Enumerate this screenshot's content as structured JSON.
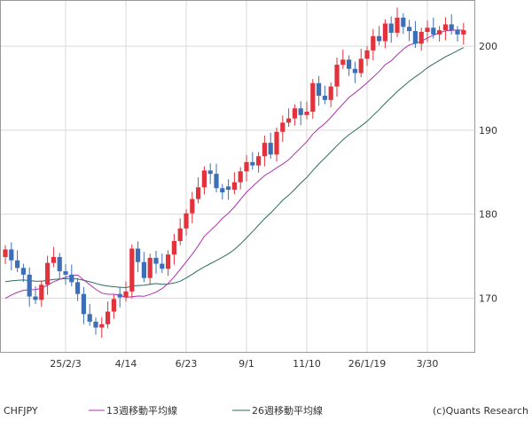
{
  "chart_data": {
    "type": "candlestick",
    "symbol": "CHFJPY",
    "credit": "(c)Quants Research",
    "ylim": [
      163.5,
      205.5
    ],
    "y_ticks": [
      170,
      180,
      190,
      200
    ],
    "x_ticks": [
      "25/2/3",
      "4/14",
      "6/23",
      "9/1",
      "11/10",
      "26/1/19",
      "3/30"
    ],
    "x_tick_index": [
      10,
      20,
      30,
      40,
      50,
      60,
      70
    ],
    "grid": true,
    "legend_position": "bottom",
    "colors": {
      "up": "#e2323c",
      "down": "#3d6fb8",
      "ma13": "#b030b0",
      "ma26": "#2c6b60"
    },
    "ma": [
      {
        "name": "13週移動平均線",
        "color": "#b030b0"
      },
      {
        "name": "26週移動平均線",
        "color": "#2c6b60"
      }
    ],
    "close": [
      175.8,
      174.5,
      173.6,
      172.8,
      170.2,
      169.8,
      171.6,
      174.2,
      174.9,
      173.2,
      172.8,
      171.9,
      170.5,
      168.1,
      167.2,
      166.5,
      166.9,
      168.4,
      169.9,
      170.1,
      170.8,
      175.9,
      174.3,
      172.4,
      174.8,
      174.1,
      173.5,
      175.2,
      176.8,
      178.3,
      180.1,
      181.8,
      183.2,
      185.2,
      184.8,
      183.1,
      182.6,
      182.9,
      183.8,
      185.1,
      186.2,
      185.8,
      186.9,
      188.5,
      187.1,
      189.8,
      190.9,
      191.4,
      192.6,
      191.8,
      192.2,
      195.6,
      194.1,
      193.6,
      195.2,
      197.8,
      198.4,
      197.3,
      196.8,
      198.5,
      199.5,
      201.2,
      200.6,
      202.7,
      201.6,
      203.4,
      202.3,
      201.8,
      200.3,
      201.7,
      202.2,
      201.4,
      201.9,
      202.6,
      201.9,
      201.4,
      201.9
    ],
    "ma13_start": 169.5,
    "ma26_start": 171.8
  }
}
